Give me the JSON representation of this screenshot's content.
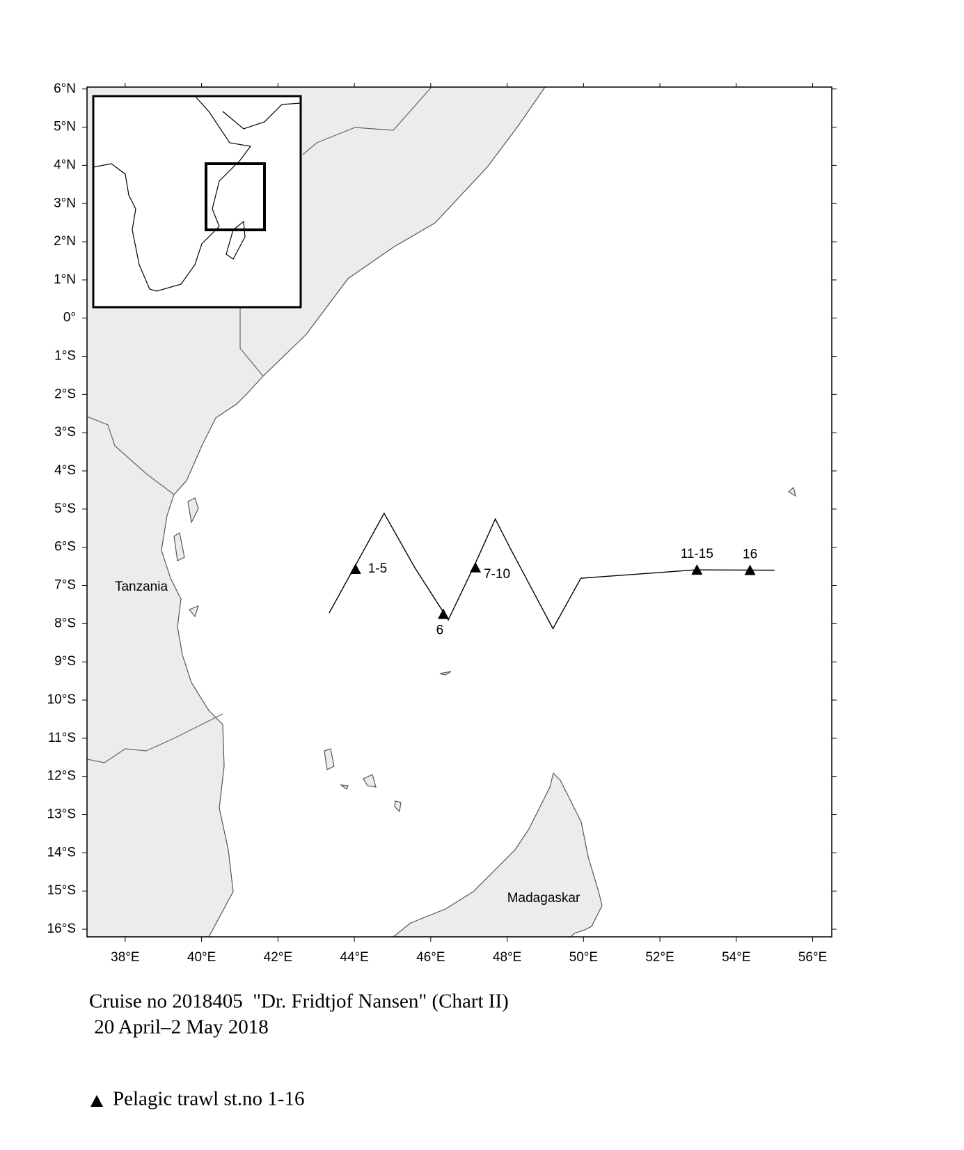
{
  "map": {
    "xlim": [
      37,
      56.5
    ],
    "ylim": [
      -16.2,
      6.05
    ],
    "xticks": [
      {
        "value": 38,
        "label": "38°E"
      },
      {
        "value": 40,
        "label": "40°E"
      },
      {
        "value": 42,
        "label": "42°E"
      },
      {
        "value": 44,
        "label": "44°E"
      },
      {
        "value": 46,
        "label": "46°E"
      },
      {
        "value": 48,
        "label": "48°E"
      },
      {
        "value": 50,
        "label": "50°E"
      },
      {
        "value": 52,
        "label": "52°E"
      },
      {
        "value": 54,
        "label": "54°E"
      },
      {
        "value": 56,
        "label": "56°E"
      }
    ],
    "yticks": [
      {
        "value": 6,
        "label": "6°N"
      },
      {
        "value": 5,
        "label": "5°N"
      },
      {
        "value": 4,
        "label": "4°N"
      },
      {
        "value": 3,
        "label": "3°N"
      },
      {
        "value": 2,
        "label": "2°N"
      },
      {
        "value": 1,
        "label": "1°N"
      },
      {
        "value": 0,
        "label": "0°"
      },
      {
        "value": -1,
        "label": "1°S"
      },
      {
        "value": -2,
        "label": "2°S"
      },
      {
        "value": -3,
        "label": "3°S"
      },
      {
        "value": -4,
        "label": "4°S"
      },
      {
        "value": -5,
        "label": "5°S"
      },
      {
        "value": -6,
        "label": "6°S"
      },
      {
        "value": -7,
        "label": "7°S"
      },
      {
        "value": -8,
        "label": "8°S"
      },
      {
        "value": -9,
        "label": "9°S"
      },
      {
        "value": -10,
        "label": "10°S"
      },
      {
        "value": -11,
        "label": "11°S"
      },
      {
        "value": -12,
        "label": "12°S"
      },
      {
        "value": -13,
        "label": "13°S"
      },
      {
        "value": -14,
        "label": "14°S"
      },
      {
        "value": -15,
        "label": "15°S"
      },
      {
        "value": -16,
        "label": "16°S"
      }
    ],
    "places": [
      "Tanzania",
      "Madagaskar"
    ],
    "track": {
      "lon": [
        43.34,
        44.78,
        45.58,
        46.46,
        47.16,
        47.69,
        48.11,
        49.2,
        49.93,
        52.95,
        55.0
      ],
      "lat": [
        -7.72,
        -5.11,
        -6.53,
        -7.9,
        -6.44,
        -5.26,
        -6.08,
        -8.13,
        -6.81,
        -6.59,
        -6.6
      ]
    },
    "stations": [
      {
        "label": "1-5",
        "lon": 44.03,
        "lat": -6.57
      },
      {
        "label": "6",
        "lon": 46.33,
        "lat": -7.75
      },
      {
        "label": "7-10",
        "lon": 47.17,
        "lat": -6.53
      },
      {
        "label": "11-15",
        "lon": 52.97,
        "lat": -6.59
      },
      {
        "label": "16",
        "lon": 54.36,
        "lat": -6.6
      }
    ]
  },
  "caption": {
    "line1": "Cruise no 2018405  \"Dr. Fridtjof Nansen\" (Chart II)",
    "line2": " 20 April–2 May 2018"
  },
  "legend": {
    "label": "Pelagic trawl st.no 1-16"
  }
}
